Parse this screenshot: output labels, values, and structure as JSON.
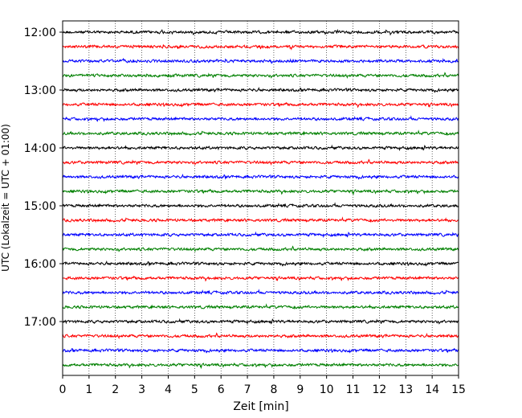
{
  "chart_data": {
    "type": "line",
    "title": "",
    "xlabel": "Zeit  [min]",
    "ylabel": "UTC (Lokalzeit = UTC + 01:00)",
    "xlim": [
      0,
      15
    ],
    "x_ticks": [
      0,
      1,
      2,
      3,
      4,
      5,
      6,
      7,
      8,
      9,
      10,
      11,
      12,
      13,
      14,
      15
    ],
    "y_tick_labels": [
      "12:00",
      "13:00",
      "14:00",
      "15:00",
      "16:00",
      "17:00"
    ],
    "grid": "vertical dotted",
    "trace_interval_min": 15,
    "trace_start": "12:00",
    "trace_count": 24,
    "trace_colors": [
      "#000000",
      "#ff0000",
      "#0000ff",
      "#008000"
    ],
    "traces_description": "helicorder seismogram; each row is a 15-minute noise trace, colors cycling black, red, blue, green"
  }
}
